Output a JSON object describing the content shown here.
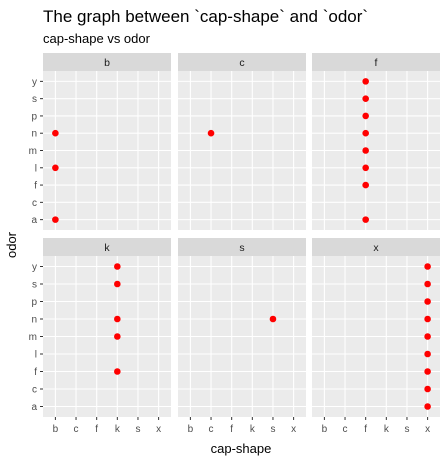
{
  "chart_data": {
    "type": "scatter",
    "title": "The graph between `cap-shape` and `odor`",
    "subtitle": "cap-shape vs odor",
    "xlabel": "cap-shape",
    "ylabel": "odor",
    "x_categories": [
      "b",
      "c",
      "f",
      "k",
      "s",
      "x"
    ],
    "y_categories": [
      "a",
      "c",
      "f",
      "l",
      "m",
      "n",
      "p",
      "s",
      "y"
    ],
    "point_color": "#ff0000",
    "panels": [
      {
        "facet": "b",
        "points": [
          [
            "b",
            "a"
          ],
          [
            "b",
            "l"
          ],
          [
            "b",
            "n"
          ]
        ]
      },
      {
        "facet": "c",
        "points": [
          [
            "c",
            "n"
          ]
        ]
      },
      {
        "facet": "f",
        "points": [
          [
            "f",
            "a"
          ],
          [
            "f",
            "f"
          ],
          [
            "f",
            "l"
          ],
          [
            "f",
            "m"
          ],
          [
            "f",
            "n"
          ],
          [
            "f",
            "p"
          ],
          [
            "f",
            "s"
          ],
          [
            "f",
            "y"
          ]
        ]
      },
      {
        "facet": "k",
        "points": [
          [
            "k",
            "f"
          ],
          [
            "k",
            "m"
          ],
          [
            "k",
            "n"
          ],
          [
            "k",
            "s"
          ],
          [
            "k",
            "y"
          ]
        ]
      },
      {
        "facet": "s",
        "points": [
          [
            "s",
            "n"
          ]
        ]
      },
      {
        "facet": "x",
        "points": [
          [
            "x",
            "a"
          ],
          [
            "x",
            "c"
          ],
          [
            "x",
            "f"
          ],
          [
            "x",
            "l"
          ],
          [
            "x",
            "m"
          ],
          [
            "x",
            "n"
          ],
          [
            "x",
            "p"
          ],
          [
            "x",
            "s"
          ],
          [
            "x",
            "y"
          ]
        ]
      }
    ]
  }
}
